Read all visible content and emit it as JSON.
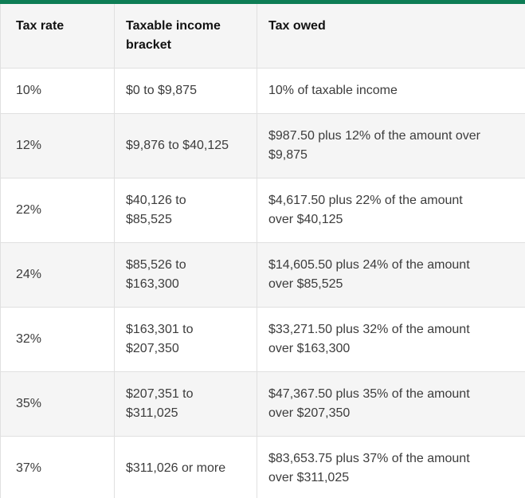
{
  "colors": {
    "accent_green": "#0d7d55",
    "alt_row_background": "#f5f5f5",
    "border": "#e0e0e0",
    "body_text": "#3c3c3c",
    "header_text": "#121212"
  },
  "table": {
    "columns": [
      {
        "label": "Tax rate"
      },
      {
        "label": "Taxable income\nbracket"
      },
      {
        "label": "Tax owed"
      }
    ],
    "rows": [
      {
        "rate": "10%",
        "bracket": "$0 to $9,875",
        "owed": "10% of taxable income"
      },
      {
        "rate": "12%",
        "bracket": "$9,876 to $40,125",
        "owed": "$987.50 plus 12% of the amount over\n$9,875"
      },
      {
        "rate": "22%",
        "bracket": "$40,126 to\n$85,525",
        "owed": "$4,617.50 plus 22% of the amount\nover $40,125"
      },
      {
        "rate": "24%",
        "bracket": "$85,526 to\n$163,300",
        "owed": "$14,605.50 plus 24% of the amount\nover $85,525"
      },
      {
        "rate": "32%",
        "bracket": "$163,301 to\n$207,350",
        "owed": "$33,271.50 plus 32% of the amount\nover $163,300"
      },
      {
        "rate": "35%",
        "bracket": "$207,351 to\n$311,025",
        "owed": "$47,367.50 plus 35% of the amount\nover $207,350"
      },
      {
        "rate": "37%",
        "bracket": "$311,026 or more",
        "owed": "$83,653.75 plus 37% of the amount\nover $311,025"
      }
    ]
  }
}
